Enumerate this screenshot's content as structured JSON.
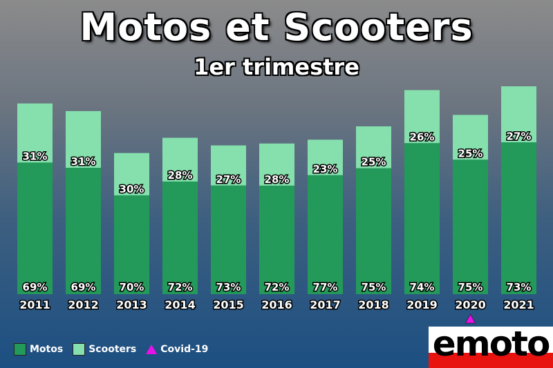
{
  "chart_data": {
    "type": "bar",
    "stacked": true,
    "title": "Motos et Scooters",
    "subtitle": "1er trimestre",
    "categories": [
      "2011",
      "2012",
      "2013",
      "2014",
      "2015",
      "2016",
      "2017",
      "2018",
      "2019",
      "2020",
      "2021"
    ],
    "series": [
      {
        "name": "Motos",
        "color": "#239a59",
        "values": [
          69,
          69,
          70,
          72,
          73,
          72,
          77,
          75,
          74,
          75,
          73
        ]
      },
      {
        "name": "Scooters",
        "color": "#86e0ad",
        "values": [
          31,
          31,
          30,
          28,
          27,
          28,
          23,
          25,
          26,
          25,
          27
        ]
      }
    ],
    "relative_total": [
      100,
      96,
      74,
      82,
      78,
      79,
      81,
      88,
      107,
      94,
      109
    ],
    "labels_motos": [
      "69%",
      "69%",
      "70%",
      "72%",
      "73%",
      "72%",
      "77%",
      "75%",
      "74%",
      "75%",
      "73%"
    ],
    "labels_scooters": [
      "31%",
      "31%",
      "30%",
      "28%",
      "27%",
      "28%",
      "23%",
      "25%",
      "26%",
      "25%",
      "27%"
    ],
    "annotation": {
      "category": "2020",
      "name": "Covid-19",
      "color": "#e812e8",
      "marker": "triangle"
    },
    "legend_position": "bottom-left",
    "grid": false
  },
  "legend": {
    "motos": "Motos",
    "scooters": "Scooters",
    "covid": "Covid-19"
  },
  "logo": {
    "text": "emoto"
  }
}
